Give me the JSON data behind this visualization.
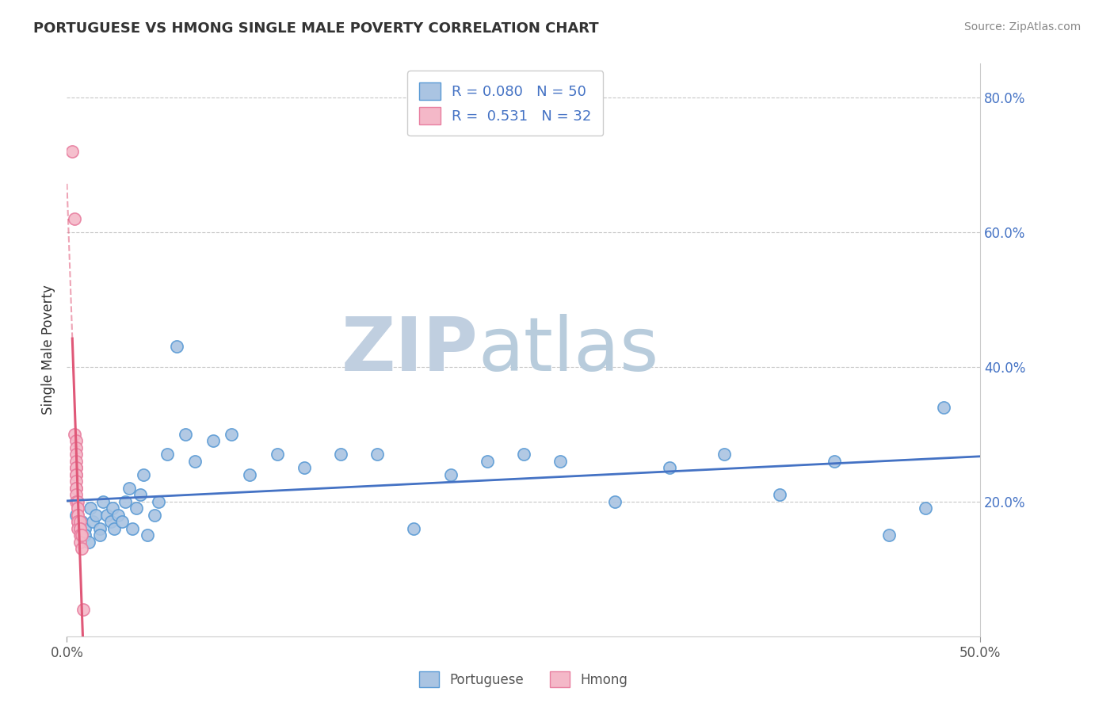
{
  "title": "PORTUGUESE VS HMONG SINGLE MALE POVERTY CORRELATION CHART",
  "source": "Source: ZipAtlas.com",
  "ylabel": "Single Male Poverty",
  "xlim": [
    0.0,
    0.5
  ],
  "ylim": [
    0.0,
    0.85
  ],
  "yticks": [
    0.2,
    0.4,
    0.6,
    0.8
  ],
  "ytick_labels": [
    "20.0%",
    "40.0%",
    "60.0%",
    "80.0%"
  ],
  "xticks": [
    0.0,
    0.5
  ],
  "xtick_labels": [
    "0.0%",
    "50.0%"
  ],
  "portuguese_R": 0.08,
  "portuguese_N": 50,
  "hmong_R": 0.531,
  "hmong_N": 32,
  "portuguese_color": "#aac4e2",
  "portuguese_edge_color": "#5b9bd5",
  "portuguese_line_color": "#4472c4",
  "hmong_color": "#f4b8c8",
  "hmong_edge_color": "#e87fa0",
  "hmong_line_color": "#e05878",
  "portuguese_x": [
    0.005,
    0.008,
    0.01,
    0.01,
    0.012,
    0.013,
    0.014,
    0.016,
    0.018,
    0.018,
    0.02,
    0.022,
    0.024,
    0.025,
    0.026,
    0.028,
    0.03,
    0.032,
    0.034,
    0.036,
    0.038,
    0.04,
    0.042,
    0.044,
    0.048,
    0.05,
    0.055,
    0.06,
    0.065,
    0.07,
    0.08,
    0.09,
    0.1,
    0.115,
    0.13,
    0.15,
    0.17,
    0.19,
    0.21,
    0.23,
    0.25,
    0.27,
    0.3,
    0.33,
    0.36,
    0.39,
    0.42,
    0.45,
    0.47,
    0.48
  ],
  "portuguese_y": [
    0.18,
    0.17,
    0.16,
    0.15,
    0.14,
    0.19,
    0.17,
    0.18,
    0.16,
    0.15,
    0.2,
    0.18,
    0.17,
    0.19,
    0.16,
    0.18,
    0.17,
    0.2,
    0.22,
    0.16,
    0.19,
    0.21,
    0.24,
    0.15,
    0.18,
    0.2,
    0.27,
    0.43,
    0.3,
    0.26,
    0.29,
    0.3,
    0.24,
    0.27,
    0.25,
    0.27,
    0.27,
    0.16,
    0.24,
    0.26,
    0.27,
    0.26,
    0.2,
    0.25,
    0.27,
    0.21,
    0.26,
    0.15,
    0.19,
    0.34
  ],
  "hmong_x": [
    0.003,
    0.004,
    0.004,
    0.005,
    0.005,
    0.005,
    0.005,
    0.005,
    0.005,
    0.005,
    0.005,
    0.005,
    0.005,
    0.005,
    0.005,
    0.005,
    0.006,
    0.006,
    0.006,
    0.006,
    0.006,
    0.006,
    0.006,
    0.006,
    0.007,
    0.007,
    0.007,
    0.007,
    0.007,
    0.008,
    0.008,
    0.009
  ],
  "hmong_y": [
    0.72,
    0.62,
    0.3,
    0.29,
    0.28,
    0.27,
    0.26,
    0.25,
    0.25,
    0.24,
    0.24,
    0.23,
    0.22,
    0.22,
    0.21,
    0.2,
    0.2,
    0.19,
    0.19,
    0.18,
    0.18,
    0.17,
    0.17,
    0.16,
    0.17,
    0.16,
    0.16,
    0.15,
    0.14,
    0.15,
    0.13,
    0.04
  ],
  "background_color": "#ffffff",
  "grid_color": "#c8c8c8",
  "watermark_zip": "ZIP",
  "watermark_atlas": "atlas",
  "watermark_color_zip": "#c8d8e8",
  "watermark_color_atlas": "#b0c8d8"
}
